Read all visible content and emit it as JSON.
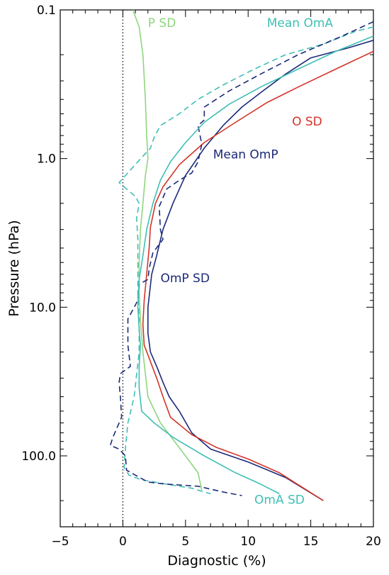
{
  "chart_data": {
    "type": "line",
    "xlabel": "Diagnostic (%)",
    "ylabel": "Pressure (hPa)",
    "xlim": [
      -5,
      20
    ],
    "ylim": [
      0.1,
      300
    ],
    "y_scale": "log",
    "y_inverted": true,
    "x_ticks": [
      {
        "value": -5,
        "label": "−5"
      },
      {
        "value": 0,
        "label": "0"
      },
      {
        "value": 5,
        "label": "5"
      },
      {
        "value": 10,
        "label": "10"
      },
      {
        "value": 15,
        "label": "15"
      },
      {
        "value": 20,
        "label": "20"
      }
    ],
    "x_minor_ticks": [
      -4,
      -3,
      -2,
      -1,
      1,
      2,
      3,
      4,
      6,
      7,
      8,
      9,
      11,
      12,
      13,
      14,
      16,
      17,
      18,
      19
    ],
    "y_ticks": [
      {
        "value": 0.1,
        "label": "0.1"
      },
      {
        "value": 1,
        "label": "1.0"
      },
      {
        "value": 10,
        "label": "10.0"
      },
      {
        "value": 100,
        "label": "100.0"
      }
    ],
    "zero_line": {
      "x": 0,
      "style": "dotted",
      "color": "#000000"
    },
    "series": [
      {
        "name": "P SD",
        "color": "#8ed67e",
        "dash": "solid",
        "label_at": {
          "x": 2.0,
          "y": 0.13
        },
        "points": [
          [
            0.8,
            0.1
          ],
          [
            1.3,
            0.13
          ],
          [
            1.6,
            0.2
          ],
          [
            1.8,
            0.4
          ],
          [
            1.9,
            0.7
          ],
          [
            2.0,
            1.0
          ],
          [
            1.8,
            1.3
          ],
          [
            1.6,
            2.0
          ],
          [
            1.4,
            3.0
          ],
          [
            1.3,
            5.0
          ],
          [
            1.3,
            8.0
          ],
          [
            1.4,
            12.0
          ],
          [
            1.6,
            20.0
          ],
          [
            2.0,
            40.0
          ],
          [
            3.0,
            60.0
          ],
          [
            5.0,
            100.0
          ],
          [
            6.0,
            130.0
          ],
          [
            6.3,
            170.0
          ]
        ]
      },
      {
        "name": "Mean OmA",
        "color": "#3fbfb4",
        "dash": "dashed",
        "label_at": {
          "x": 11.5,
          "y": 0.13
        },
        "points": [
          [
            20.0,
            0.13
          ],
          [
            18.5,
            0.14
          ],
          [
            16.0,
            0.17
          ],
          [
            13.0,
            0.2
          ],
          [
            10.5,
            0.25
          ],
          [
            8.0,
            0.32
          ],
          [
            6.0,
            0.4
          ],
          [
            4.5,
            0.5
          ],
          [
            3.0,
            0.6
          ],
          [
            2.5,
            0.72
          ],
          [
            2.2,
            0.85
          ],
          [
            1.2,
            1.05
          ],
          [
            -0.3,
            1.45
          ],
          [
            1.0,
            1.8
          ],
          [
            1.3,
            2.0
          ],
          [
            1.1,
            2.5
          ],
          [
            1.2,
            3.5
          ],
          [
            1.2,
            5.5
          ],
          [
            1.2,
            8.0
          ],
          [
            1.3,
            12.0
          ],
          [
            1.3,
            20.0
          ],
          [
            0.9,
            40.0
          ],
          [
            0.4,
            60.0
          ],
          [
            0.2,
            90.0
          ],
          [
            0.1,
            120.0
          ],
          [
            0.5,
            135.0
          ],
          [
            1.5,
            145.0
          ],
          [
            3.5,
            155.0
          ],
          [
            5.5,
            165.0
          ],
          [
            7.0,
            180.0
          ]
        ]
      },
      {
        "name": "Mean OmP",
        "color": "#1c2a78",
        "dash": "solid",
        "label_at": {
          "x": 7.2,
          "y": 1.0
        },
        "points": [
          [
            20.0,
            0.16
          ],
          [
            18.0,
            0.18
          ],
          [
            15.0,
            0.21
          ],
          [
            13.0,
            0.27
          ],
          [
            11.0,
            0.36
          ],
          [
            9.5,
            0.45
          ],
          [
            8.0,
            0.6
          ],
          [
            6.5,
            0.85
          ],
          [
            5.0,
            1.3
          ],
          [
            4.0,
            2.0
          ],
          [
            3.2,
            3.0
          ],
          [
            2.7,
            4.5
          ],
          [
            2.3,
            6.0
          ],
          [
            2.0,
            10.0
          ],
          [
            2.0,
            15.0
          ],
          [
            2.2,
            20.0
          ],
          [
            2.7,
            25.0
          ],
          [
            3.2,
            32.0
          ],
          [
            3.7,
            40.0
          ],
          [
            4.5,
            50.0
          ],
          [
            5.5,
            70.0
          ],
          [
            7.0,
            90.0
          ],
          [
            10.0,
            110.0
          ],
          [
            13.0,
            140.0
          ],
          [
            16.0,
            200.0
          ]
        ]
      },
      {
        "name": "O SD",
        "color": "#d33428",
        "dash": "solid",
        "label_at": {
          "x": 13.5,
          "y": 0.6
        },
        "points": [
          [
            20.0,
            0.19
          ],
          [
            17.0,
            0.25
          ],
          [
            14.0,
            0.33
          ],
          [
            11.5,
            0.42
          ],
          [
            9.0,
            0.57
          ],
          [
            6.5,
            0.78
          ],
          [
            4.5,
            1.1
          ],
          [
            3.2,
            1.55
          ],
          [
            2.6,
            2.0
          ],
          [
            2.2,
            2.9
          ],
          [
            2.1,
            4.0
          ],
          [
            1.9,
            6.0
          ],
          [
            1.7,
            9.0
          ],
          [
            1.6,
            13.0
          ],
          [
            1.7,
            18.0
          ],
          [
            2.1,
            22.0
          ],
          [
            2.7,
            30.0
          ],
          [
            3.2,
            40.0
          ],
          [
            3.8,
            55.0
          ],
          [
            5.5,
            72.0
          ],
          [
            7.5,
            88.0
          ],
          [
            10.0,
            105.0
          ],
          [
            12.5,
            130.0
          ],
          [
            16.0,
            200.0
          ]
        ]
      },
      {
        "name": "OmP SD",
        "color": "#1c2a78",
        "dash": "dashed",
        "label_at": {
          "x": 3.0,
          "y": 6.8
        },
        "points": [
          [
            20.0,
            0.12
          ],
          [
            17.5,
            0.15
          ],
          [
            14.0,
            0.2
          ],
          [
            11.0,
            0.27
          ],
          [
            8.5,
            0.35
          ],
          [
            6.5,
            0.45
          ],
          [
            6.5,
            0.55
          ],
          [
            6.0,
            0.6
          ],
          [
            6.3,
            0.8
          ],
          [
            6.0,
            1.05
          ],
          [
            5.5,
            1.25
          ],
          [
            4.5,
            1.4
          ],
          [
            3.5,
            1.6
          ],
          [
            2.9,
            2.1
          ],
          [
            3.0,
            3.0
          ],
          [
            3.2,
            3.5
          ],
          [
            2.4,
            4.3
          ],
          [
            2.1,
            5.5
          ],
          [
            2.0,
            6.5
          ],
          [
            1.3,
            7.0
          ],
          [
            1.2,
            9.0
          ],
          [
            0.4,
            12.0
          ],
          [
            0.4,
            18.0
          ],
          [
            0.6,
            25.0
          ],
          [
            -0.2,
            28.0
          ],
          [
            -0.3,
            32.0
          ],
          [
            -0.2,
            40.0
          ],
          [
            -0.1,
            55.0
          ],
          [
            -0.8,
            75.0
          ],
          [
            -1.0,
            85.0
          ],
          [
            -0.3,
            90.0
          ],
          [
            0.2,
            100.0
          ],
          [
            0.3,
            125.0
          ],
          [
            2.0,
            150.0
          ],
          [
            3.5,
            155.0
          ],
          [
            6.0,
            160.0
          ],
          [
            8.0,
            175.0
          ],
          [
            9.5,
            185.0
          ]
        ]
      },
      {
        "name": "OmA SD",
        "color": "#3fbfb4",
        "dash": "solid",
        "label_at": {
          "x": 10.5,
          "y": 210.0
        },
        "points": [
          [
            20.0,
            0.15
          ],
          [
            17.0,
            0.19
          ],
          [
            14.0,
            0.25
          ],
          [
            11.0,
            0.33
          ],
          [
            8.5,
            0.43
          ],
          [
            6.5,
            0.57
          ],
          [
            5.0,
            0.78
          ],
          [
            3.8,
            1.05
          ],
          [
            3.0,
            1.4
          ],
          [
            2.4,
            2.0
          ],
          [
            1.9,
            3.0
          ],
          [
            1.6,
            4.5
          ],
          [
            1.3,
            6.5
          ],
          [
            1.2,
            10.0
          ],
          [
            1.3,
            14.0
          ],
          [
            1.4,
            18.0
          ],
          [
            1.3,
            25.0
          ],
          [
            1.3,
            35.0
          ],
          [
            1.5,
            50.0
          ],
          [
            2.5,
            60.0
          ],
          [
            4.0,
            75.0
          ],
          [
            6.5,
            100.0
          ],
          [
            9.0,
            130.0
          ],
          [
            11.0,
            155.0
          ],
          [
            12.5,
            180.0
          ]
        ]
      }
    ]
  }
}
